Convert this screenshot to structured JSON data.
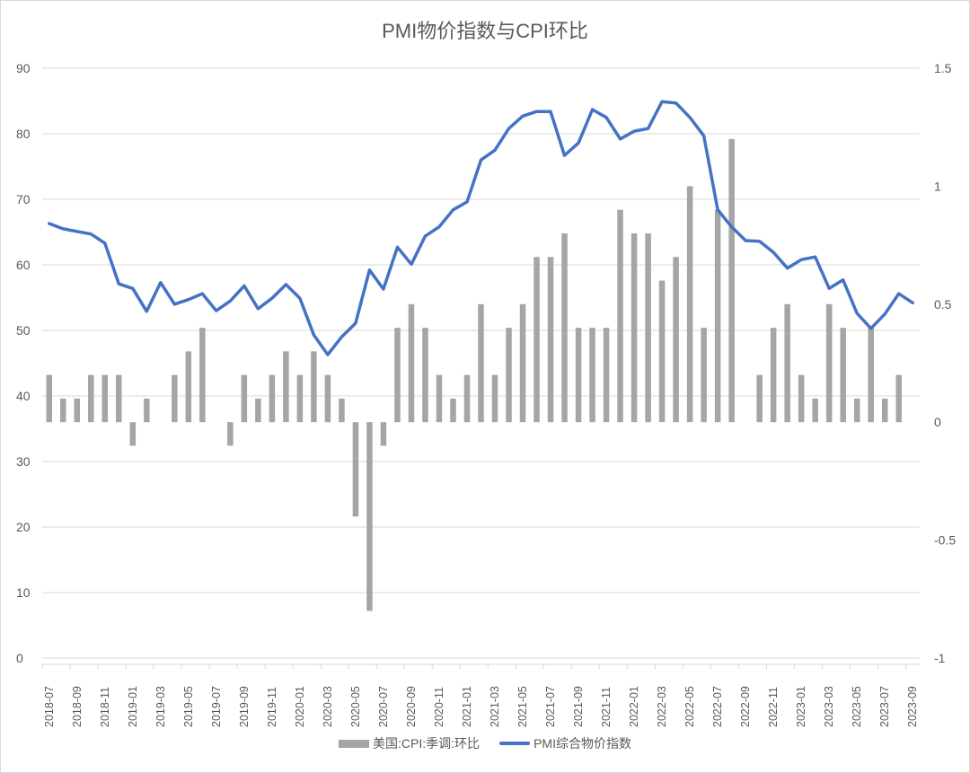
{
  "chart_data": {
    "type": "bar+line",
    "title": "PMI物价指数与CPI环比",
    "xlabel": "",
    "ylabel_left": "",
    "ylabel_right": "",
    "ylim_left": [
      0,
      90
    ],
    "yticks_left": [
      0,
      10,
      20,
      30,
      40,
      50,
      60,
      70,
      80,
      90
    ],
    "ylim_right": [
      -1,
      1.5
    ],
    "yticks_right": [
      "-1",
      "-0.5",
      "0",
      "0.5",
      "1",
      "1.5"
    ],
    "grid": true,
    "legend_position": "bottom",
    "x": [
      "2018-07",
      "2018-08",
      "2018-09",
      "2018-10",
      "2018-11",
      "2018-12",
      "2019-01",
      "2019-02",
      "2019-03",
      "2019-04",
      "2019-05",
      "2019-06",
      "2019-07",
      "2019-08",
      "2019-09",
      "2019-10",
      "2019-11",
      "2019-12",
      "2020-01",
      "2020-02",
      "2020-03",
      "2020-04",
      "2020-05",
      "2020-06",
      "2020-07",
      "2020-08",
      "2020-09",
      "2020-10",
      "2020-11",
      "2020-12",
      "2021-01",
      "2021-02",
      "2021-03",
      "2021-04",
      "2021-05",
      "2021-06",
      "2021-07",
      "2021-08",
      "2021-09",
      "2021-10",
      "2021-11",
      "2021-12",
      "2022-01",
      "2022-02",
      "2022-03",
      "2022-04",
      "2022-05",
      "2022-06",
      "2022-07",
      "2022-08",
      "2022-09",
      "2022-10",
      "2022-11",
      "2022-12",
      "2023-01",
      "2023-02",
      "2023-03",
      "2023-04",
      "2023-05",
      "2023-06",
      "2023-07",
      "2023-08",
      "2023-09"
    ],
    "xtick_labels": [
      "2018-07",
      "2018-09",
      "2018-11",
      "2019-01",
      "2019-03",
      "2019-05",
      "2019-07",
      "2019-09",
      "2019-11",
      "2020-01",
      "2020-03",
      "2020-05",
      "2020-07",
      "2020-09",
      "2020-11",
      "2021-01",
      "2021-03",
      "2021-05",
      "2021-07",
      "2021-09",
      "2021-11",
      "2022-01",
      "2022-03",
      "2022-05",
      "2022-07",
      "2022-09",
      "2022-11",
      "2023-01",
      "2023-03",
      "2023-05",
      "2023-07",
      "2023-09"
    ],
    "series": [
      {
        "name": "美国:CPI:季调:环比",
        "type": "bar",
        "axis": "right",
        "color": "#a5a5a5",
        "values": [
          0.2,
          0.1,
          0.1,
          0.2,
          0.2,
          0.2,
          -0.1,
          0.1,
          0.0,
          0.2,
          0.3,
          0.4,
          0.0,
          -0.1,
          0.2,
          0.1,
          0.2,
          0.3,
          0.2,
          0.3,
          0.2,
          0.1,
          -0.4,
          -0.8,
          -0.1,
          0.4,
          0.5,
          0.4,
          0.2,
          0.1,
          0.2,
          0.5,
          0.2,
          0.4,
          0.5,
          0.7,
          0.7,
          0.8,
          0.4,
          0.4,
          0.4,
          0.9,
          0.8,
          0.8,
          0.6,
          0.7,
          1.0,
          0.4,
          0.9,
          1.2,
          0.0,
          0.2,
          0.4,
          0.5,
          0.2,
          0.1,
          0.5,
          0.4,
          0.1,
          0.4,
          0.1,
          0.2,
          null
        ]
      },
      {
        "name": "PMI综合物价指数",
        "type": "line",
        "axis": "left",
        "color": "#4472c4",
        "values": [
          66.3,
          65.5,
          65.1,
          64.7,
          63.3,
          57.1,
          56.4,
          52.9,
          57.3,
          54.0,
          54.7,
          55.6,
          53.0,
          54.5,
          56.8,
          53.3,
          54.9,
          57.0,
          54.9,
          49.3,
          46.3,
          49.0,
          51.1,
          59.2,
          56.3,
          62.7,
          60.1,
          64.4,
          65.8,
          68.4,
          69.6,
          76.0,
          77.5,
          80.8,
          82.7,
          83.4,
          83.4,
          76.7,
          78.6,
          83.7,
          82.5,
          79.2,
          80.4,
          80.8,
          84.9,
          84.7,
          82.5,
          79.7,
          68.4,
          65.8,
          63.7,
          63.6,
          61.9,
          59.5,
          60.8,
          61.2,
          56.4,
          57.7,
          52.6,
          50.3,
          52.5,
          55.6,
          54.2
        ]
      }
    ]
  },
  "legend": {
    "bar_label": "美国:CPI:季调:环比",
    "line_label": "PMI综合物价指数"
  }
}
